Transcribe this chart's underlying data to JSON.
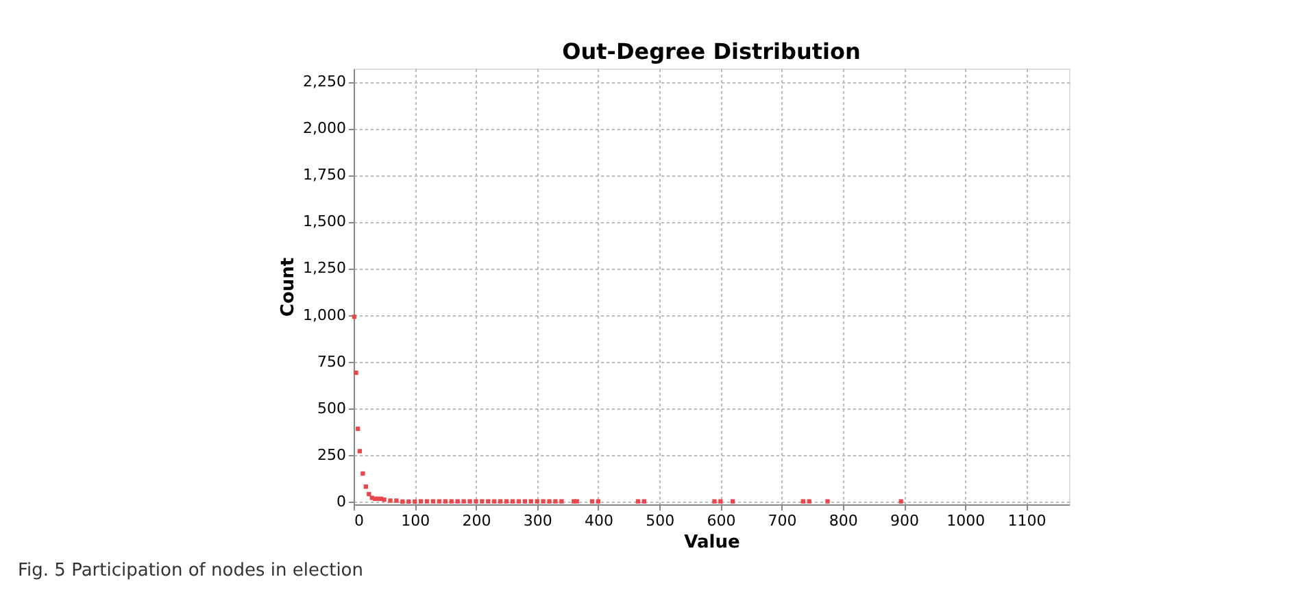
{
  "chart_data": {
    "type": "scatter",
    "title": "Out-Degree Distribution",
    "xlabel": "Value",
    "ylabel": "Count",
    "x": [
      1,
      4,
      7,
      10,
      15,
      20,
      25,
      30,
      35,
      40,
      45,
      50,
      60,
      70,
      80,
      90,
      100,
      110,
      120,
      130,
      140,
      150,
      160,
      170,
      180,
      190,
      200,
      210,
      220,
      230,
      240,
      250,
      260,
      270,
      280,
      290,
      300,
      310,
      320,
      330,
      340,
      360,
      365,
      390,
      400,
      465,
      475,
      590,
      600,
      620,
      735,
      745,
      775,
      895
    ],
    "series": [
      {
        "color": "#e8474b",
        "values": [
          990,
          690,
          390,
          270,
          150,
          80,
          40,
          20,
          15,
          15,
          15,
          10,
          5,
          5,
          0,
          0,
          0,
          1,
          1,
          1,
          1,
          1,
          1,
          1,
          1,
          1,
          1,
          1,
          1,
          1,
          1,
          1,
          1,
          1,
          1,
          1,
          1,
          1,
          1,
          1,
          1,
          1,
          1,
          1,
          1,
          1,
          1,
          1,
          1,
          1,
          1,
          1,
          1,
          1
        ]
      }
    ],
    "xlim": [
      0,
      1170
    ],
    "ylim": [
      -15,
      2320
    ],
    "xticks": [
      0,
      100,
      200,
      300,
      400,
      500,
      600,
      700,
      800,
      900,
      1000,
      1100
    ],
    "yticks": [
      0,
      250,
      500,
      750,
      {
        "value": 1000,
        "label": "1,000"
      },
      {
        "value": 1250,
        "label": "1,250"
      },
      {
        "value": 1500,
        "label": "1,500"
      },
      {
        "value": 1750,
        "label": "1,750"
      },
      {
        "value": 2000,
        "label": "2,000"
      },
      {
        "value": 2250,
        "label": "2,250"
      }
    ],
    "grid": true,
    "marker": "square",
    "annotations": [
      "Fig. 5  Participation of nodes in election"
    ]
  }
}
